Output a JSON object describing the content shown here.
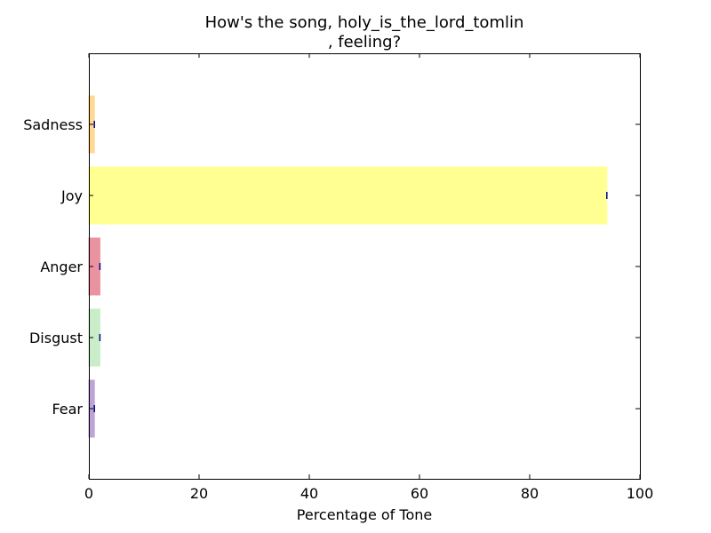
{
  "chart_data": {
    "type": "bar",
    "orientation": "horizontal",
    "title_line1": "How's the song, holy_is_the_lord_tomlin",
    "title_line2": ", feeling?",
    "xlabel": "Percentage of Tone",
    "ylabel": "",
    "xlim": [
      0,
      100
    ],
    "x_ticks": [
      "0",
      "20",
      "40",
      "60",
      "80",
      "100"
    ],
    "categories": [
      "Sadness",
      "Joy",
      "Anger",
      "Disgust",
      "Fear"
    ],
    "values": [
      1,
      94,
      2,
      2,
      1
    ],
    "colors": [
      "#ffd27f",
      "#ffff7f",
      "#e77f8f",
      "#bfeabf",
      "#b195cf"
    ],
    "error_marker_color": "#00008b",
    "grid": false,
    "legend": "none"
  }
}
